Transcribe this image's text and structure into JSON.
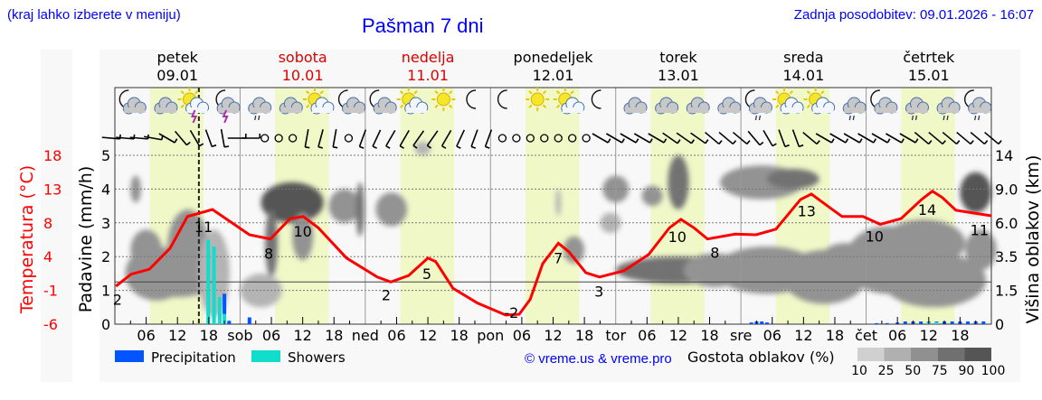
{
  "header": {
    "location_note": "(kraj lahko izberete v meniju)",
    "title": "Pašman 7 dni",
    "updated": "Zadnja posodobitev: 09.01.2026 - 16:07"
  },
  "colors": {
    "temperature": "#ff0000",
    "precipitation": "#0055ff",
    "showers": "#11ddcc",
    "daylight": "#f0f8c8",
    "title": "#0000ff",
    "weekend": "#dd0000"
  },
  "days": [
    {
      "name": "petek",
      "date": "09.01",
      "abbr": "",
      "weekend": false
    },
    {
      "name": "sobota",
      "date": "10.01",
      "abbr": "sob",
      "weekend": true
    },
    {
      "name": "nedelja",
      "date": "11.01",
      "abbr": "ned",
      "weekend": true
    },
    {
      "name": "ponedeljek",
      "date": "12.01",
      "abbr": "pon",
      "weekend": false
    },
    {
      "name": "torek",
      "date": "13.01",
      "abbr": "tor",
      "weekend": false
    },
    {
      "name": "sreda",
      "date": "14.01",
      "abbr": "sre",
      "weekend": false
    },
    {
      "name": "četrtek",
      "date": "15.01",
      "abbr": "čet",
      "weekend": false
    }
  ],
  "hour_ticks": [
    "06",
    "12",
    "18"
  ],
  "legend": {
    "precipitation": "Precipitation",
    "showers": "Showers",
    "copyright": "© vreme.us & vreme.pro",
    "cloud_density": "Gostota oblakov (%)",
    "density_levels": [
      "10",
      "25",
      "50",
      "75",
      "90",
      "100"
    ]
  },
  "chart_data": {
    "type": "line",
    "title": "Pašman 7 dni",
    "x_unit": "hours from 09.01 00:00",
    "xlim": [
      0,
      168
    ],
    "now_hour": 16.1,
    "left_axis_temperature": {
      "label": "Temperatura (°C)",
      "ticks": [
        "18",
        "13",
        "8",
        "4",
        "-1",
        "-6"
      ],
      "range": [
        -6,
        18
      ]
    },
    "left_axis_precip": {
      "label": "Padavine (mm/h)",
      "ticks": [
        "5",
        "4",
        "3",
        "2",
        "1",
        "0"
      ],
      "range": [
        0,
        5
      ]
    },
    "right_axis_cloud": {
      "label": "Višina oblakov (km)",
      "ticks": [
        "14",
        "9.0",
        "6.0",
        "3.5",
        "1.5",
        "0"
      ]
    },
    "daylight": [
      [
        6.7,
        17
      ],
      [
        30.7,
        41
      ],
      [
        54.7,
        65
      ],
      [
        78.7,
        89
      ],
      [
        102.7,
        113
      ],
      [
        126.7,
        137
      ],
      [
        150.7,
        161
      ]
    ],
    "temperature": {
      "hours": [
        0.2,
        3.1,
        6.6,
        10.6,
        13.9,
        18.7,
        25.8,
        29.8,
        33.6,
        36.1,
        39,
        44.4,
        50.3,
        52.9,
        56.3,
        60,
        61.5,
        64.8,
        69.5,
        74.9,
        77.5,
        79.6,
        82,
        85,
        87,
        90.3,
        92.9,
        97.6,
        102.3,
        106.3,
        108.5,
        111,
        113.6,
        118.9,
        122.9,
        126.7,
        131.4,
        133.5,
        136.8,
        139.4,
        143.4,
        146.7,
        150.7,
        154.6,
        156.7,
        158.6,
        161.2,
        168
      ],
      "values": [
        -0.6,
        1.1,
        1.8,
        4.8,
        9.3,
        10.3,
        6.7,
        6.1,
        9,
        9.3,
        7.7,
        3.4,
        0.7,
        0,
        0.9,
        3.4,
        2.9,
        -0.9,
        -3,
        -4.7,
        -4.6,
        -2.5,
        2.6,
        5.5,
        4.3,
        1.3,
        0.7,
        1.6,
        3.9,
        7.7,
        8.9,
        7.7,
        6.1,
        6.8,
        6.7,
        7.5,
        11.7,
        12.5,
        10.7,
        9.3,
        9.3,
        8.2,
        9,
        11.7,
        12.9,
        12,
        10.2,
        9.4
      ]
    },
    "temperature_labels": [
      {
        "hour": 0.5,
        "text": "2"
      },
      {
        "hour": 17,
        "text": "11"
      },
      {
        "hour": 29.5,
        "text": "8"
      },
      {
        "hour": 36,
        "text": "10"
      },
      {
        "hour": 52,
        "text": "2"
      },
      {
        "hour": 59.8,
        "text": "5"
      },
      {
        "hour": 76,
        "text": "-2"
      },
      {
        "hour": 85,
        "text": "7"
      },
      {
        "hour": 92.8,
        "text": "3"
      },
      {
        "hour": 107.8,
        "text": "10"
      },
      {
        "hour": 115,
        "text": "8"
      },
      {
        "hour": 132.6,
        "text": "13"
      },
      {
        "hour": 145.6,
        "text": "10"
      },
      {
        "hour": 155.7,
        "text": "14"
      },
      {
        "hour": 167.3,
        "text": "11"
      }
    ],
    "precip_bars": [
      {
        "hour": 17.9,
        "precip": 0,
        "showers": 2.5
      },
      {
        "hour": 19,
        "precip": 0,
        "showers": 2.3
      },
      {
        "hour": 20.1,
        "precip": 0,
        "showers": 0.8
      },
      {
        "hour": 21,
        "precip": 0.6,
        "showers": 0.3
      },
      {
        "hour": 21.9,
        "precip": 0.1,
        "showers": 0
      },
      {
        "hour": 25.8,
        "precip": 0.2,
        "showers": 0
      },
      {
        "hour": 122,
        "precip": 0.05,
        "showers": 0
      },
      {
        "hour": 123,
        "precip": 0.08,
        "showers": 0
      },
      {
        "hour": 124,
        "precip": 0.08,
        "showers": 0
      },
      {
        "hour": 125,
        "precip": 0.05,
        "showers": 0
      },
      {
        "hour": 146,
        "precip": 0.03,
        "showers": 0
      },
      {
        "hour": 148,
        "precip": 0.03,
        "showers": 0
      },
      {
        "hour": 150,
        "precip": 0.05,
        "showers": 0
      },
      {
        "hour": 151.5,
        "precip": 0.08,
        "showers": 0
      },
      {
        "hour": 153,
        "precip": 0.08,
        "showers": 0
      },
      {
        "hour": 154.5,
        "precip": 0.08,
        "showers": 0
      },
      {
        "hour": 156,
        "precip": 0.02,
        "showers": 0.06
      },
      {
        "hour": 157.5,
        "precip": 0.02,
        "showers": 0.06
      },
      {
        "hour": 159,
        "precip": 0.08,
        "showers": 0
      },
      {
        "hour": 160.5,
        "precip": 0.08,
        "showers": 0
      },
      {
        "hour": 162,
        "precip": 0.08,
        "showers": 0
      },
      {
        "hour": 163.5,
        "precip": 0.08,
        "showers": 0
      },
      {
        "hour": 165,
        "precip": 0.08,
        "showers": 0
      },
      {
        "hour": 166.5,
        "precip": 0.08,
        "showers": 0
      }
    ],
    "cloud_patches": [
      {
        "hour": 8,
        "level": 1.5,
        "dh": 6,
        "dl": 0.8,
        "density": 50
      },
      {
        "hour": 6,
        "level": 2.2,
        "dh": 3,
        "dl": 0.6,
        "density": 50
      },
      {
        "hour": 14,
        "level": 2.2,
        "dh": 4,
        "dl": 1.2,
        "density": 50
      },
      {
        "hour": 12,
        "level": 1.4,
        "dh": 8,
        "dl": 0.6,
        "density": 50
      },
      {
        "hour": 4,
        "level": 4,
        "dh": 1,
        "dl": 0.4,
        "density": 50
      },
      {
        "hour": 19,
        "level": 1.5,
        "dh": 3,
        "dl": 1.3,
        "density": 25
      },
      {
        "hour": 34,
        "level": 3.6,
        "dh": 6,
        "dl": 0.6,
        "density": 90
      },
      {
        "hour": 30,
        "level": 2.4,
        "dh": 1.2,
        "dl": 1,
        "density": 75
      },
      {
        "hour": 36,
        "level": 2.6,
        "dh": 2,
        "dl": 0.7,
        "density": 50
      },
      {
        "hour": 28,
        "level": 1,
        "dh": 4,
        "dl": 0.5,
        "density": 25
      },
      {
        "hour": 44,
        "level": 3.5,
        "dh": 3,
        "dl": 0.5,
        "density": 50
      },
      {
        "hour": 47,
        "level": 3.4,
        "dh": 0.8,
        "dl": 0.8,
        "density": 75
      },
      {
        "hour": 53,
        "level": 3.4,
        "dh": 3,
        "dl": 0.5,
        "density": 50
      },
      {
        "hour": 59,
        "level": 5.2,
        "dh": 1.5,
        "dl": 0.2,
        "density": 25
      },
      {
        "hour": 85,
        "level": 3.6,
        "dh": 0.5,
        "dl": 0.4,
        "density": 25
      },
      {
        "hour": 88,
        "level": 2.2,
        "dh": 2,
        "dl": 0.4,
        "density": 50
      },
      {
        "hour": 96,
        "level": 4,
        "dh": 2.5,
        "dl": 0.4,
        "density": 50
      },
      {
        "hour": 95,
        "level": 3,
        "dh": 2,
        "dl": 0.3,
        "density": 25
      },
      {
        "hour": 103,
        "level": 3.8,
        "dh": 2,
        "dl": 0.3,
        "density": 50
      },
      {
        "hour": 108,
        "level": 4.2,
        "dh": 2,
        "dl": 0.8,
        "density": 75
      },
      {
        "hour": 108,
        "level": 1.6,
        "dh": 12,
        "dl": 0.4,
        "density": 75
      },
      {
        "hour": 115,
        "level": 1.6,
        "dh": 6,
        "dl": 0.5,
        "density": 50
      },
      {
        "hour": 124,
        "level": 4.2,
        "dh": 8,
        "dl": 0.5,
        "density": 50
      },
      {
        "hour": 130,
        "level": 4.3,
        "dh": 5,
        "dl": 0.3,
        "density": 75
      },
      {
        "hour": 125,
        "level": 1.6,
        "dh": 10,
        "dl": 0.7,
        "density": 50
      },
      {
        "hour": 136,
        "level": 1.4,
        "dh": 8,
        "dl": 0.8,
        "density": 50
      },
      {
        "hour": 140,
        "level": 2.1,
        "dh": 4,
        "dl": 0.3,
        "density": 50
      },
      {
        "hour": 148,
        "level": 1.9,
        "dh": 8,
        "dl": 1,
        "density": 50
      },
      {
        "hour": 155,
        "level": 2.4,
        "dh": 8,
        "dl": 0.7,
        "density": 50
      },
      {
        "hour": 157,
        "level": 1.3,
        "dh": 10,
        "dl": 0.8,
        "density": 50
      },
      {
        "hour": 165,
        "level": 3.9,
        "dh": 3,
        "dl": 0.6,
        "density": 90
      },
      {
        "hour": 166,
        "level": 2.2,
        "dh": 3,
        "dl": 0.6,
        "density": 50
      }
    ],
    "weather_icons": [
      "moon-cloud",
      "cloud",
      "sun-cloud-thunder",
      "moon-thunder",
      "cloud-rain",
      "cloud",
      "sun-cloud",
      "moon-cloud",
      "moon-cloud",
      "sun-cloud",
      "sun",
      "moon",
      "moon",
      "sun",
      "sun-cloud",
      "moon",
      "cloud",
      "cloud",
      "cloud",
      "cloud",
      "moon-rain",
      "sun-cloud",
      "sun-cloud",
      "cloud-rain",
      "moon-cloud",
      "cloud-rain",
      "cloud-rain",
      "moon-rain"
    ],
    "wind_directions_deg": [
      95,
      95,
      95,
      100,
      120,
      140,
      150,
      160,
      170,
      90,
      90,
      -1,
      -1,
      -1,
      190,
      195,
      190,
      -1,
      200,
      205,
      210,
      210,
      215,
      215,
      210,
      205,
      200,
      200,
      -1,
      -1,
      -1,
      -1,
      -1,
      -1,
      -1,
      120,
      120,
      120,
      120,
      120,
      125,
      125,
      125,
      130,
      130,
      130,
      140,
      150,
      160,
      160,
      130,
      120,
      120,
      120,
      120,
      120,
      120,
      120,
      130,
      130,
      130,
      130,
      130,
      130
    ]
  }
}
